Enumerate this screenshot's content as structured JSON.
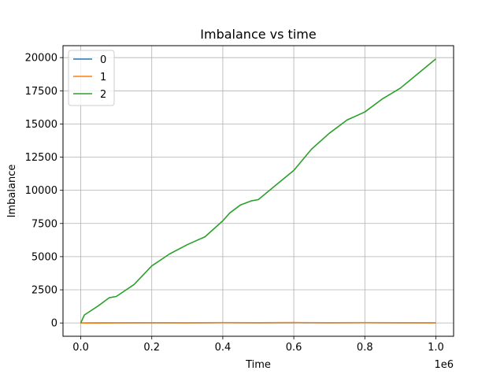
{
  "chart_data": {
    "type": "line",
    "title": "Imbalance vs time",
    "xlabel": "Time",
    "ylabel": "Imbalance",
    "x_offset_label": "1e6",
    "xlim": [
      -50000,
      1050000
    ],
    "ylim": [
      -1000,
      20900
    ],
    "xticks": [
      0,
      200000,
      400000,
      600000,
      800000,
      1000000
    ],
    "xtick_labels": [
      "0.0",
      "0.2",
      "0.4",
      "0.6",
      "0.8",
      "1.0"
    ],
    "yticks": [
      0,
      2500,
      5000,
      7500,
      10000,
      12500,
      15000,
      17500,
      20000
    ],
    "ytick_labels": [
      "0",
      "2500",
      "5000",
      "7500",
      "10000",
      "12500",
      "15000",
      "17500",
      "20000"
    ],
    "grid": true,
    "legend_position": "upper-left",
    "series": [
      {
        "name": "0",
        "color": "#1f77b4",
        "x": [
          0,
          100000,
          200000,
          300000,
          400000,
          500000,
          600000,
          700000,
          800000,
          900000,
          1000000
        ],
        "y": [
          0,
          10,
          15,
          10,
          20,
          15,
          20,
          15,
          20,
          15,
          10
        ]
      },
      {
        "name": "1",
        "color": "#ff7f0e",
        "x": [
          0,
          100000,
          200000,
          300000,
          400000,
          500000,
          600000,
          700000,
          800000,
          900000,
          1000000
        ],
        "y": [
          0,
          15,
          20,
          15,
          25,
          20,
          30,
          20,
          25,
          20,
          15
        ]
      },
      {
        "name": "2",
        "color": "#2ca02c",
        "x": [
          0,
          10000,
          50000,
          80000,
          100000,
          150000,
          200000,
          250000,
          300000,
          350000,
          400000,
          420000,
          450000,
          480000,
          500000,
          550000,
          600000,
          650000,
          700000,
          750000,
          800000,
          850000,
          900000,
          950000,
          1000000
        ],
        "y": [
          0,
          600,
          1300,
          1900,
          2000,
          2900,
          4300,
          5200,
          5900,
          6500,
          7700,
          8300,
          8900,
          9200,
          9300,
          10400,
          11500,
          13100,
          14300,
          15300,
          15900,
          16900,
          17700,
          18800,
          19900
        ]
      }
    ]
  }
}
